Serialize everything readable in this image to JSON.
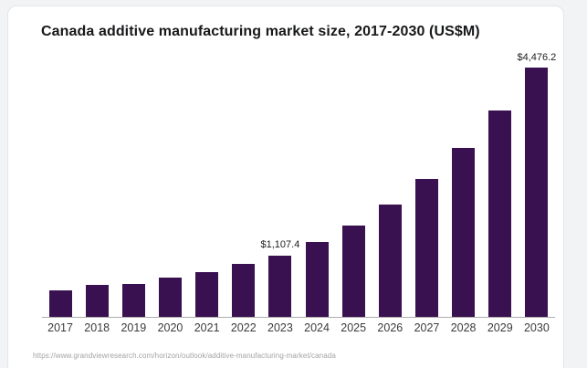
{
  "page": {
    "background_color": "#f2f3f4",
    "card_background_color": "#ffffff"
  },
  "card": {
    "title": "Canada additive manufacturing market size, 2017-2030 (US$M)",
    "source_url": "https://www.grandviewresearch.com/horizon/outlook/additive-manufacturing-market/canada"
  },
  "chart_data": {
    "type": "bar",
    "title": "Canada additive manufacturing market size, 2017-2030 (US$M)",
    "categories": [
      "2017",
      "2018",
      "2019",
      "2020",
      "2021",
      "2022",
      "2023",
      "2024",
      "2025",
      "2026",
      "2027",
      "2028",
      "2029",
      "2030"
    ],
    "values": [
      480,
      570,
      590,
      700,
      810,
      950,
      1107.4,
      1350,
      1640,
      2020,
      2470,
      3040,
      3700,
      4476.2
    ],
    "value_labels": {
      "2023": "$1,107.4",
      "2030": "$4,476.2"
    },
    "xlabel": "",
    "ylabel": "",
    "unit": "US$M",
    "ylim": [
      0,
      4476.2
    ],
    "grid": false,
    "legend": false,
    "bar_color": "#3a1150",
    "axis_line_color": "#adadad"
  }
}
